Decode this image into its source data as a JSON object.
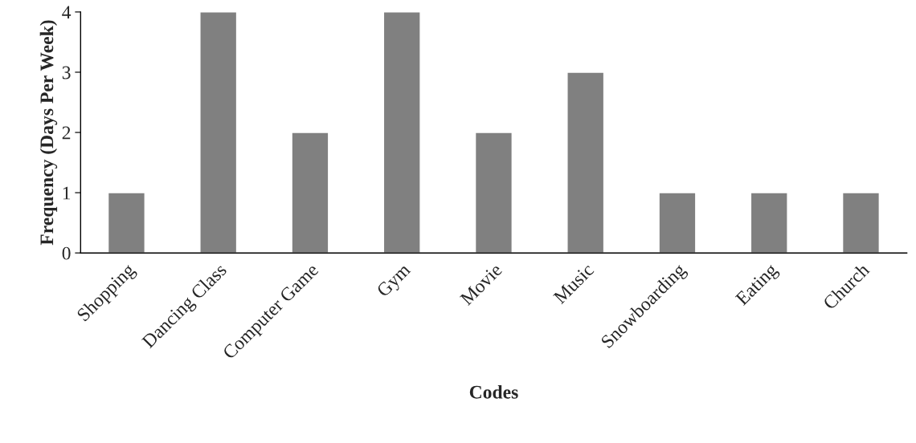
{
  "chart_data": {
    "type": "bar",
    "xlabel": "Codes",
    "ylabel": "Frequency (Days Per Week)",
    "categories": [
      "Shopping",
      "Dancing Class",
      "Computer Game",
      "Gym",
      "Movie",
      "Music",
      "Snowboarding",
      "Eating",
      "Church"
    ],
    "values": [
      1,
      4,
      2,
      4,
      2,
      3,
      1,
      1,
      1
    ],
    "color": "#808080",
    "ylim": [
      0,
      4
    ],
    "yticks": [
      0,
      1,
      2,
      3,
      4
    ],
    "grid": false,
    "legend": false
  }
}
